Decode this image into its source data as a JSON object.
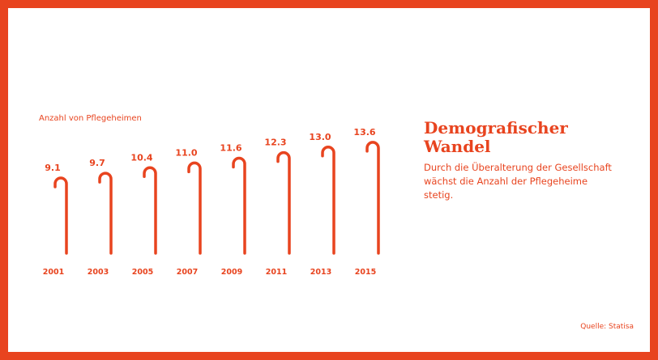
{
  "headline": "Demografischer Wandel",
  "description": "Durch die Überalterung der Gesellschaft wächst die Anzahl der Pflegeheime stetig.",
  "source": "Quelle: Statisa",
  "colors": {
    "accent": "#e8441f",
    "background": "#ffffff"
  },
  "chart_data": {
    "type": "bar",
    "mark": "walking-cane",
    "ylabel": "Anzahl von Pflegeheimen",
    "categories": [
      "2001",
      "2003",
      "2005",
      "2007",
      "2009",
      "2011",
      "2013",
      "2015"
    ],
    "values": [
      9.1,
      9.7,
      10.4,
      11.0,
      11.6,
      12.3,
      13.0,
      13.6
    ],
    "value_labels": [
      "9.1",
      "9.7",
      "10.4",
      "11.0",
      "11.6",
      "12.3",
      "13.0",
      "13.6"
    ],
    "grid": false,
    "legend": "none"
  }
}
